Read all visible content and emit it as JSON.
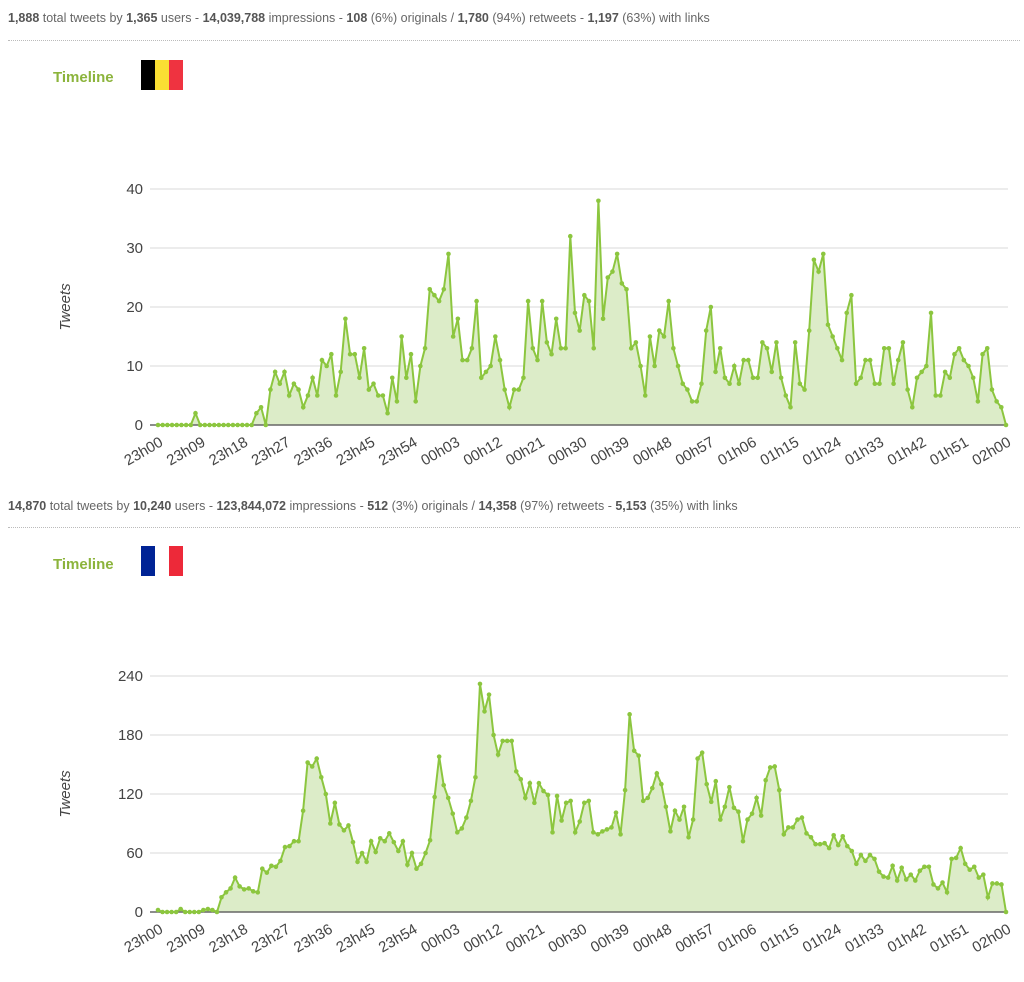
{
  "sections": [
    {
      "stats": {
        "total": "1,888",
        "t1": " total tweets by ",
        "users": "1,365",
        "t2": " users - ",
        "impressions": "14,039,788",
        "t3": " impressions - ",
        "originals": "108",
        "t4": " (6%) originals / ",
        "retweets": "1,780",
        "t5": " (94%) retweets - ",
        "links": "1,197",
        "t6": " (63%) with links"
      },
      "timeline_label": "Timeline",
      "flag": {
        "country": "Belgium",
        "colors": [
          "#000000",
          "#fadf33",
          "#ef3340"
        ]
      }
    },
    {
      "stats": {
        "total": "14,870",
        "t1": " total tweets by ",
        "users": "10,240",
        "t2": " users - ",
        "impressions": "123,844,072",
        "t3": " impressions - ",
        "originals": "512",
        "t4": " (3%) originals / ",
        "retweets": "14,358",
        "t5": " (97%) retweets - ",
        "links": "5,153",
        "t6": " (35%) with links"
      },
      "timeline_label": "Timeline",
      "flag": {
        "country": "France",
        "colors": [
          "#002395",
          "#ffffff",
          "#ed2939"
        ]
      }
    }
  ],
  "colors": {
    "line": "#8cc63f",
    "fill": "#dcecc8",
    "timeline": "#8cb43c"
  },
  "chart_data": [
    {
      "type": "area",
      "title": "",
      "ylabel": "Tweets",
      "xlabel": "",
      "ylim": [
        0,
        40
      ],
      "yticks": [
        0,
        10,
        20,
        30,
        40
      ],
      "grid": true,
      "xticks": [
        "23h00",
        "23h09",
        "23h18",
        "23h27",
        "23h36",
        "23h45",
        "23h54",
        "00h03",
        "00h12",
        "00h21",
        "00h30",
        "00h39",
        "00h48",
        "00h57",
        "01h06",
        "01h15",
        "01h24",
        "01h33",
        "01h42",
        "01h51",
        "02h00"
      ],
      "values": [
        0,
        0,
        0,
        0,
        0,
        0,
        0,
        0,
        2,
        0,
        0,
        0,
        0,
        0,
        0,
        0,
        0,
        0,
        0,
        0,
        0,
        2,
        3,
        0,
        6,
        9,
        7,
        9,
        5,
        7,
        6,
        3,
        5,
        8,
        5,
        11,
        10,
        12,
        5,
        9,
        18,
        12,
        12,
        8,
        13,
        6,
        7,
        5,
        5,
        2,
        8,
        4,
        15,
        8,
        12,
        4,
        10,
        13,
        23,
        22,
        21,
        23,
        29,
        15,
        18,
        11,
        11,
        13,
        21,
        8,
        9,
        10,
        15,
        11,
        6,
        3,
        6,
        6,
        8,
        21,
        13,
        11,
        21,
        14,
        12,
        18,
        13,
        13,
        32,
        19,
        16,
        22,
        21,
        13,
        38,
        18,
        25,
        26,
        29,
        24,
        23,
        13,
        14,
        10,
        5,
        15,
        10,
        16,
        15,
        21,
        13,
        10,
        7,
        6,
        4,
        4,
        7,
        16,
        20,
        9,
        13,
        8,
        7,
        10,
        7,
        11,
        11,
        8,
        8,
        14,
        13,
        9,
        14,
        8,
        5,
        3,
        14,
        7,
        6,
        16,
        28,
        26,
        29,
        17,
        15,
        13,
        11,
        19,
        22,
        7,
        8,
        11,
        11,
        7,
        7,
        13,
        13,
        7,
        11,
        14,
        6,
        3,
        8,
        9,
        10,
        19,
        5,
        5,
        9,
        8,
        12,
        13,
        11,
        10,
        8,
        4,
        12,
        13,
        6,
        4,
        3,
        0
      ]
    },
    {
      "type": "area",
      "title": "",
      "ylabel": "Tweets",
      "xlabel": "",
      "ylim": [
        0,
        240
      ],
      "yticks": [
        0,
        60,
        120,
        180,
        240
      ],
      "grid": true,
      "xticks": [
        "23h00",
        "23h09",
        "23h18",
        "23h27",
        "23h36",
        "23h45",
        "23h54",
        "00h03",
        "00h12",
        "00h21",
        "00h30",
        "00h39",
        "00h48",
        "00h57",
        "01h06",
        "01h15",
        "01h24",
        "01h33",
        "01h42",
        "01h51",
        "02h00"
      ],
      "values": [
        2,
        0,
        0,
        0,
        0,
        3,
        0,
        0,
        0,
        0,
        2,
        3,
        2,
        0,
        15,
        20,
        24,
        35,
        26,
        23,
        24,
        21,
        20,
        44,
        40,
        47,
        46,
        52,
        66,
        67,
        72,
        72,
        103,
        152,
        148,
        156,
        137,
        120,
        90,
        111,
        89,
        83,
        88,
        71,
        51,
        60,
        51,
        72,
        61,
        75,
        72,
        80,
        71,
        62,
        72,
        48,
        60,
        44,
        49,
        60,
        73,
        117,
        158,
        129,
        116,
        100,
        81,
        85,
        96,
        113,
        137,
        232,
        204,
        221,
        180,
        160,
        174,
        174,
        174,
        143,
        135,
        116,
        131,
        111,
        131,
        123,
        119,
        81,
        118,
        93,
        111,
        113,
        81,
        92,
        111,
        113,
        81,
        79,
        82,
        84,
        86,
        101,
        79,
        124,
        201,
        164,
        159,
        113,
        116,
        126,
        141,
        130,
        107,
        82,
        103,
        94,
        107,
        76,
        94,
        156,
        162,
        130,
        112,
        133,
        94,
        107,
        127,
        106,
        102,
        72,
        94,
        100,
        116,
        98,
        134,
        147,
        148,
        124,
        79,
        86,
        86,
        94,
        96,
        80,
        76,
        69,
        69,
        70,
        65,
        78,
        68,
        77,
        67,
        62,
        49,
        58,
        52,
        58,
        54,
        41,
        36,
        35,
        47,
        32,
        45,
        33,
        38,
        32,
        42,
        46,
        46,
        28,
        24,
        30,
        20,
        54,
        55,
        65,
        49,
        43,
        46,
        35,
        38,
        15,
        29,
        29,
        28,
        0
      ]
    }
  ]
}
